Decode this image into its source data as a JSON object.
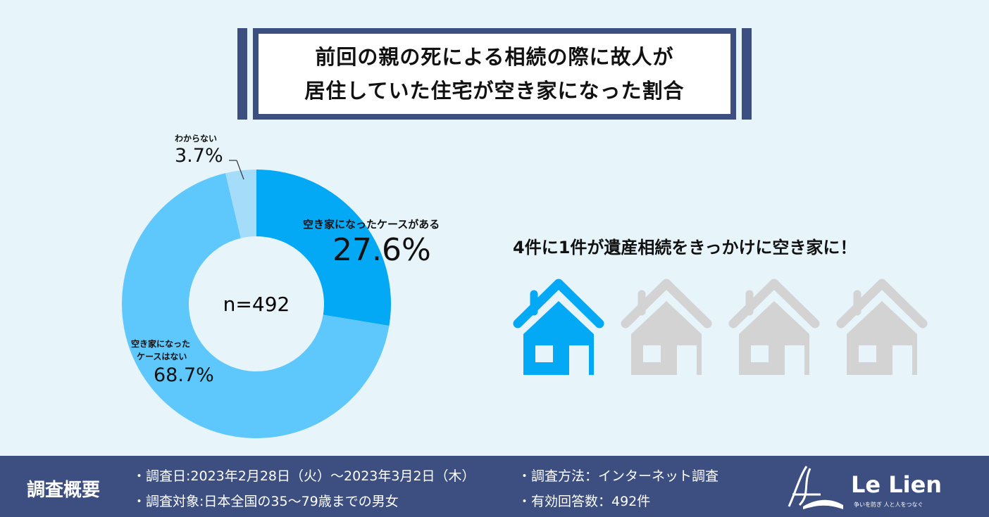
{
  "title": {
    "line1": "前回の親の死による相続の際に故人が",
    "line2": "居住していた住宅が空き家になった割合"
  },
  "chart_data": {
    "type": "pie",
    "donut": true,
    "center_label": "n=492",
    "slices": [
      {
        "label": "空き家になったケースがある",
        "value": 27.6,
        "display": "27.6%",
        "color": "#03a9f4"
      },
      {
        "label": "空き家になったケースはない",
        "value": 68.7,
        "display": "68.7%",
        "color": "#5ec8fc"
      },
      {
        "label": "わからない",
        "value": 3.7,
        "display": "3.7%",
        "color": "#a5dcfa"
      }
    ]
  },
  "labels": {
    "nonai_line1": "空き家になった",
    "nonai_line2": "ケースはない"
  },
  "headline": "4件に1件が遺産相続をきっかけに空き家に！",
  "houses": {
    "total": 4,
    "highlighted": 1,
    "active_color": "#03a9f4",
    "inactive_color": "#d3d3d3",
    "icon": "house-icon"
  },
  "footer": {
    "heading": "調査概要",
    "items": [
      "・調査日:2023年2月28日（火）～2023年3月2日（木）",
      "・調査方法：インターネット調査",
      "・調査対象:日本全国の35～79歳までの男女",
      "・有効回答数：492件"
    ],
    "logo": {
      "name": "Le Lien",
      "tagline": "争いを防ぎ 人と人をつなぐ"
    }
  },
  "colors": {
    "navy": "#3d4f80",
    "background": "#e7f4fa"
  }
}
